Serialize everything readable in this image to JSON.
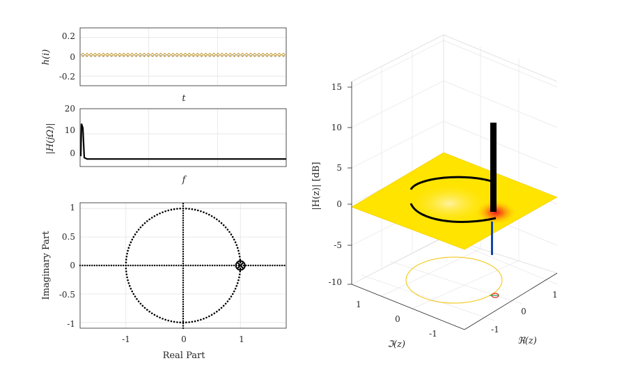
{
  "chart_data": [
    {
      "type": "line",
      "panel": "impulse-response",
      "xlabel": "t",
      "ylabel": "h(i)",
      "ylim": [
        -0.3,
        0.3
      ],
      "yticks": [
        "0.2",
        "0",
        "-0.2"
      ],
      "grid": true,
      "series": [
        {
          "values": [
            0.02,
            0.02,
            0.02,
            0.02,
            0.02,
            0.02,
            0.02,
            0.02,
            0.02,
            0.02,
            0.02,
            0.02,
            0.02,
            0.02,
            0.02,
            0.02,
            0.02,
            0.02,
            0.02,
            0.02,
            0.02,
            0.02,
            0.02,
            0.02,
            0.02,
            0.02,
            0.02,
            0.02,
            0.02,
            0.02,
            0.02,
            0.02,
            0.02,
            0.02,
            0.02,
            0.02,
            0.02,
            0.02,
            0.02,
            0.02,
            0.02,
            0.02,
            0.02,
            0.02,
            0.02,
            0.02,
            0.02,
            0.02,
            0.02,
            0.02
          ]
        }
      ]
    },
    {
      "type": "line",
      "panel": "magnitude-response",
      "xlabel": "f",
      "ylabel": "|H(jΩ)|",
      "ylim": [
        -3,
        20
      ],
      "yticks": [
        "20",
        "10",
        "0"
      ],
      "grid": true,
      "peak": 14,
      "baseline": 0
    },
    {
      "type": "scatter",
      "panel": "pole-zero",
      "xlabel": "Real Part",
      "ylabel": "Imaginary Part",
      "xlim": [
        -1.8,
        1.8
      ],
      "ylim": [
        -1.1,
        1.1
      ],
      "xticks": [
        "-1",
        "0",
        "1"
      ],
      "yticks": [
        "1",
        "0.5",
        "0",
        "-0.5",
        "-1"
      ],
      "grid": true,
      "poles": [
        [
          1.0,
          0.0
        ]
      ],
      "zeros": [
        [
          1.0,
          0.0
        ]
      ]
    },
    {
      "type": "surface",
      "panel": "z-plane-surface",
      "xlabel": "ℜ(z)",
      "ylabel": "ℑ(z)",
      "zlabel": "|H(z)| [dB]",
      "zlim": [
        -10,
        15
      ],
      "zticks": [
        "15",
        "10",
        "5",
        "0",
        "-5",
        "-10"
      ],
      "xticks": [
        "1",
        "0",
        "-1"
      ],
      "yticks": [
        "1",
        "0",
        "-1"
      ],
      "colors": {
        "surface": "#ffe400",
        "hot": "#e8211a",
        "contour": "#f2c200",
        "spike": "#000000",
        "pole": "#1144aa"
      }
    }
  ]
}
